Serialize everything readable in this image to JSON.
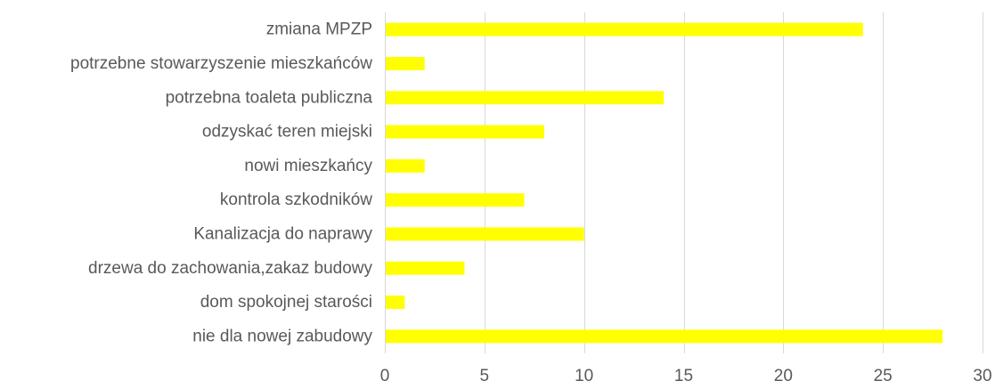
{
  "chart_data": {
    "type": "bar",
    "orientation": "horizontal",
    "title": "",
    "xlabel": "",
    "ylabel": "",
    "categories": [
      "zmiana MPZP",
      "potrzebne stowarzyszenie mieszkańców",
      "potrzebna toaleta publiczna",
      "odzyskać teren miejski",
      "nowi mieszkańcy",
      "kontrola szkodników",
      "Kanalizacja do naprawy",
      "drzewa do zachowania,zakaz budowy",
      "dom spokojnej starości",
      "nie dla nowej zabudowy"
    ],
    "values": [
      24,
      2,
      14,
      8,
      2,
      7,
      10,
      4,
      1,
      28
    ],
    "xlim": [
      0,
      30
    ],
    "xticks": [
      0,
      5,
      10,
      15,
      20,
      25,
      30
    ],
    "grid": true,
    "legend": "none",
    "bar_color": "#ffff00"
  }
}
